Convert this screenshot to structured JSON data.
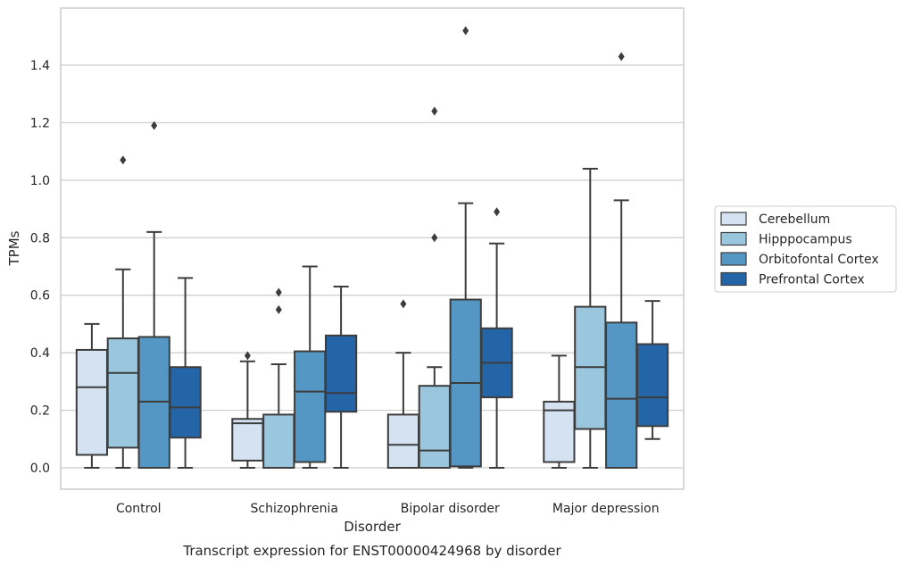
{
  "chart_data": {
    "type": "box",
    "caption": "Transcript expression for ENST00000424968 by disorder",
    "xlabel": "Disorder",
    "ylabel": "TPMs",
    "ylim": [
      -0.075,
      1.6
    ],
    "yticks": [
      0.0,
      0.2,
      0.4,
      0.6,
      0.8,
      1.0,
      1.2,
      1.4
    ],
    "grid": true,
    "legend_position": "right",
    "categories": [
      "Control",
      "Schizophrenia",
      "Bipolar disorder",
      "Major depression"
    ],
    "series": [
      {
        "name": "Cerebellum",
        "color": "#d4e2f1",
        "boxes": [
          {
            "whislo": 0.0,
            "q1": 0.045,
            "med": 0.28,
            "q3": 0.41,
            "whishi": 0.5,
            "fliers": []
          },
          {
            "whislo": 0.0,
            "q1": 0.025,
            "med": 0.155,
            "q3": 0.17,
            "whishi": 0.37,
            "fliers": [
              0.39
            ]
          },
          {
            "whislo": 0.0,
            "q1": 0.0,
            "med": 0.08,
            "q3": 0.185,
            "whishi": 0.4,
            "fliers": [
              0.57
            ]
          },
          {
            "whislo": 0.0,
            "q1": 0.02,
            "med": 0.2,
            "q3": 0.23,
            "whishi": 0.39,
            "fliers": []
          }
        ]
      },
      {
        "name": "Hipppocampus",
        "color": "#9ac6de",
        "boxes": [
          {
            "whislo": 0.0,
            "q1": 0.07,
            "med": 0.33,
            "q3": 0.45,
            "whishi": 0.69,
            "fliers": [
              1.07
            ]
          },
          {
            "whislo": 0.0,
            "q1": 0.0,
            "med": 0.0,
            "q3": 0.185,
            "whishi": 0.36,
            "fliers": [
              0.55,
              0.61
            ]
          },
          {
            "whislo": 0.0,
            "q1": 0.0,
            "med": 0.06,
            "q3": 0.285,
            "whishi": 0.35,
            "fliers": [
              0.8,
              1.24
            ]
          },
          {
            "whislo": 0.0,
            "q1": 0.135,
            "med": 0.35,
            "q3": 0.56,
            "whishi": 1.04,
            "fliers": []
          }
        ]
      },
      {
        "name": "Orbitofontal Cortex",
        "color": "#5497c4",
        "boxes": [
          {
            "whislo": 0.0,
            "q1": 0.0,
            "med": 0.23,
            "q3": 0.455,
            "whishi": 0.82,
            "fliers": [
              1.19
            ]
          },
          {
            "whislo": 0.0,
            "q1": 0.02,
            "med": 0.265,
            "q3": 0.405,
            "whishi": 0.7,
            "fliers": []
          },
          {
            "whislo": 0.0,
            "q1": 0.005,
            "med": 0.295,
            "q3": 0.585,
            "whishi": 0.92,
            "fliers": [
              1.52
            ]
          },
          {
            "whislo": 0.0,
            "q1": 0.0,
            "med": 0.24,
            "q3": 0.505,
            "whishi": 0.93,
            "fliers": [
              1.43
            ]
          }
        ]
      },
      {
        "name": "Prefrontal Cortex",
        "color": "#2465a8",
        "boxes": [
          {
            "whislo": 0.0,
            "q1": 0.105,
            "med": 0.21,
            "q3": 0.35,
            "whishi": 0.66,
            "fliers": []
          },
          {
            "whislo": 0.0,
            "q1": 0.195,
            "med": 0.26,
            "q3": 0.46,
            "whishi": 0.63,
            "fliers": []
          },
          {
            "whislo": 0.0,
            "q1": 0.245,
            "med": 0.365,
            "q3": 0.485,
            "whishi": 0.78,
            "fliers": [
              0.89
            ]
          },
          {
            "whislo": 0.1,
            "q1": 0.145,
            "med": 0.245,
            "q3": 0.43,
            "whishi": 0.58,
            "fliers": []
          }
        ]
      }
    ]
  }
}
